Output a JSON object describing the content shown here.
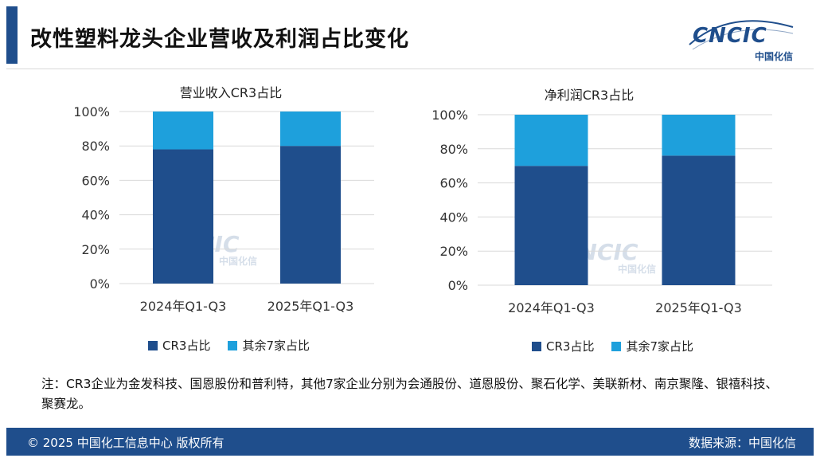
{
  "header": {
    "title": "改性塑料龙头企业营收及利润占比变化",
    "logo_text": "CNCIC",
    "logo_sub": "中国化信"
  },
  "legend": {
    "items": [
      {
        "label": "CR3占比",
        "color": "#1f4e8c"
      },
      {
        "label": "其余7家占比",
        "color": "#1ea0dc"
      }
    ]
  },
  "chart_data": [
    {
      "type": "bar",
      "stacked": true,
      "title": "营业收入CR3占比",
      "categories": [
        "2024年Q1-Q3",
        "2025年Q1-Q3"
      ],
      "series": [
        {
          "name": "CR3占比",
          "values": [
            78,
            80
          ]
        },
        {
          "name": "其余7家占比",
          "values": [
            22,
            20
          ]
        }
      ],
      "yticks": [
        "0%",
        "20%",
        "40%",
        "60%",
        "80%",
        "100%"
      ],
      "ylim": [
        0,
        100
      ],
      "grid": true
    },
    {
      "type": "bar",
      "stacked": true,
      "title": "净利润CR3占比",
      "categories": [
        "2024年Q1-Q3",
        "2025年Q1-Q3"
      ],
      "series": [
        {
          "name": "CR3占比",
          "values": [
            70,
            76
          ]
        },
        {
          "name": "其余7家占比",
          "values": [
            30,
            24
          ]
        }
      ],
      "yticks": [
        "0%",
        "20%",
        "40%",
        "60%",
        "80%",
        "100%"
      ],
      "ylim": [
        0,
        100
      ],
      "grid": true
    }
  ],
  "watermark": {
    "main": "CNCIC",
    "sub": "中国化信"
  },
  "note": "注：CR3企业为金发科技、国恩股份和普利特，其他7家企业分别为会通股份、道恩股份、聚石化学、美联新材、南京聚隆、银禧科技、聚赛龙。",
  "footer": {
    "copyright": "© 2025 中国化工信息中心 版权所有",
    "source": "数据来源：中国化信"
  }
}
